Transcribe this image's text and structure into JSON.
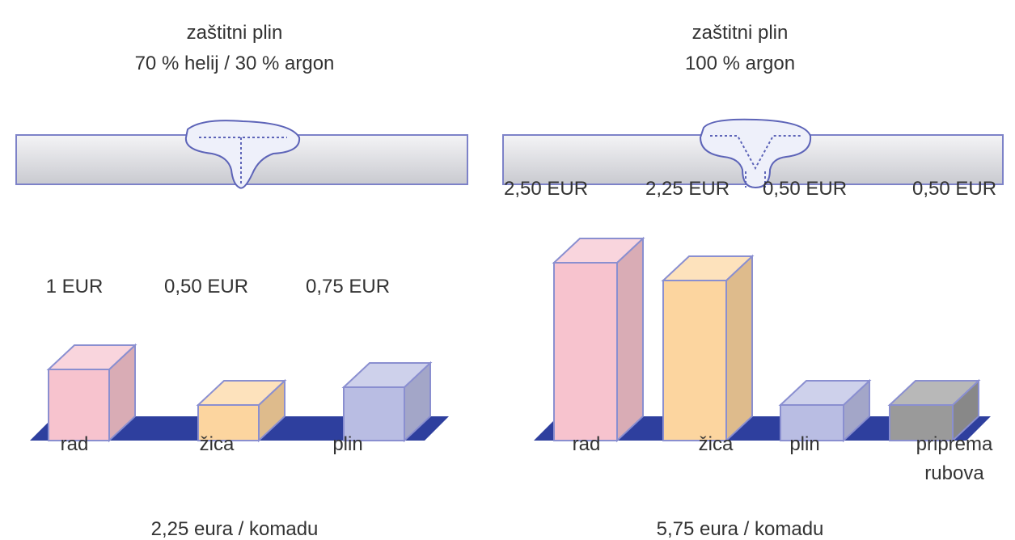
{
  "chart_data": [
    {
      "type": "bar",
      "title": "zaštitni plin",
      "subtitle": "70 % helij / 30 % argon",
      "categories": [
        "rad",
        "žica",
        "plin"
      ],
      "values": [
        1,
        0.5,
        0.75
      ],
      "value_labels": [
        "1 EUR",
        "0,50 EUR",
        "0,75 EUR"
      ],
      "colors": [
        "#f7c3ce",
        "#fcd59f",
        "#b9bde3"
      ],
      "annotation": "2,25 eura / komadu"
    },
    {
      "type": "bar",
      "title": "zaštitni plin",
      "subtitle": "100 % argon",
      "categories": [
        "rad",
        "žica",
        "plin",
        "priprema rubova"
      ],
      "values": [
        2.5,
        2.25,
        0.5,
        0.5
      ],
      "value_labels": [
        "2,50 EUR",
        "2,25 EUR",
        "0,50 EUR",
        "0,50 EUR"
      ],
      "colors": [
        "#f7c3ce",
        "#fcd59f",
        "#b9bde3",
        "#9a9a9a"
      ],
      "annotation": "5,75 eura / komadu"
    }
  ]
}
